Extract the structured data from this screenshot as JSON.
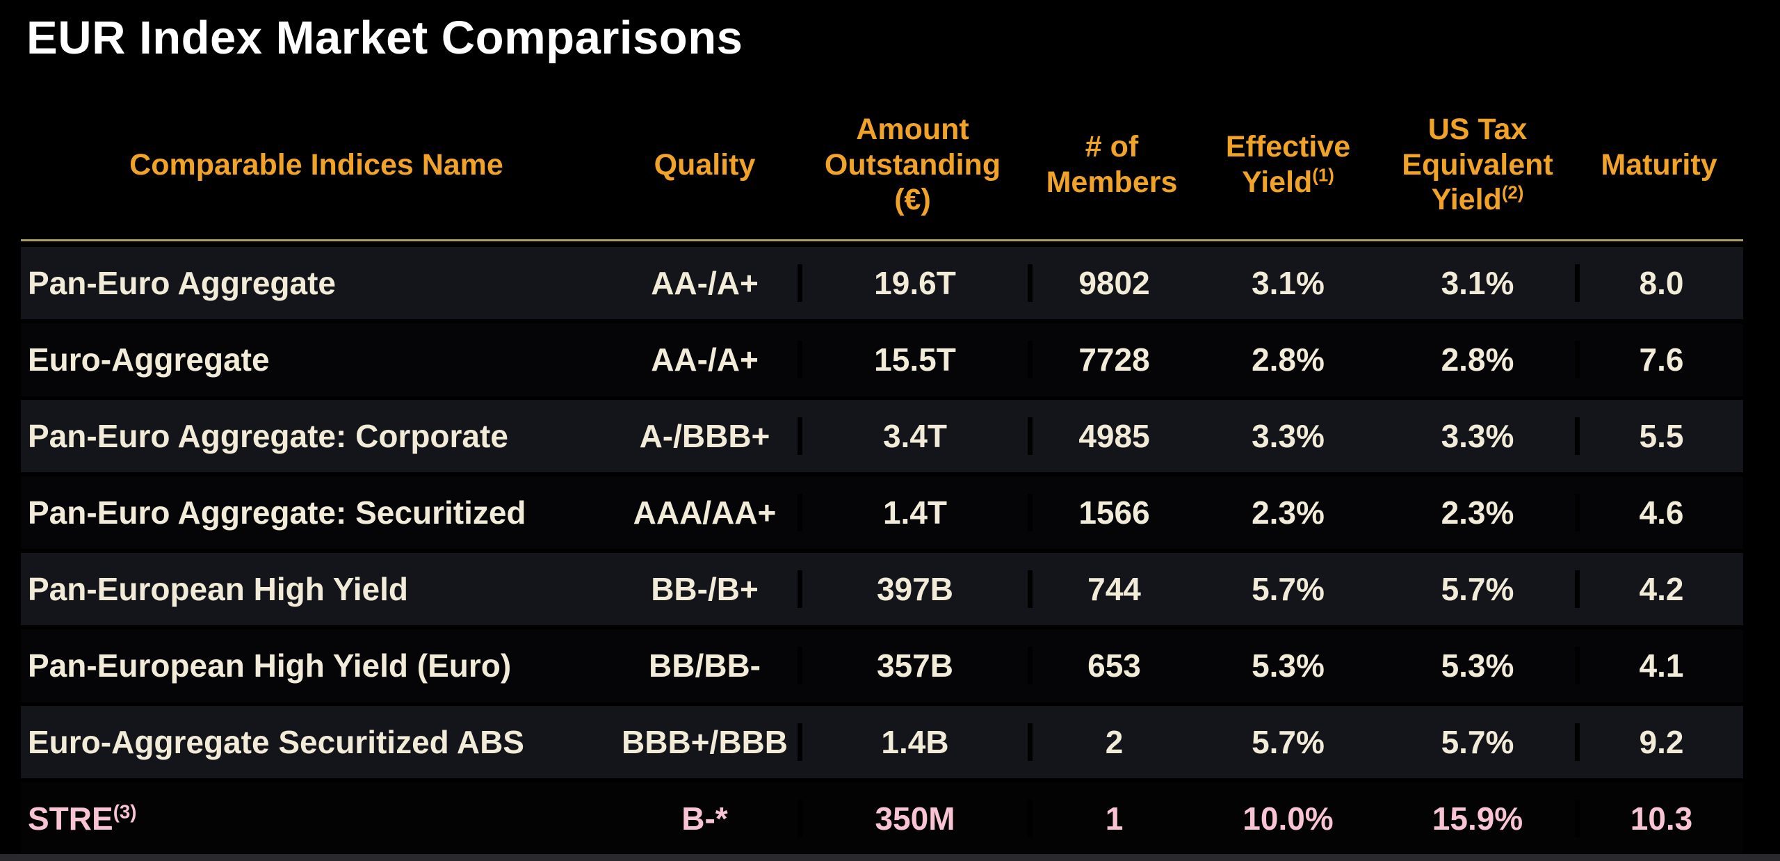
{
  "page": {
    "title": "EUR Index Market Comparisons"
  },
  "colors": {
    "background": "#000000",
    "title_color": "#FFFFFF",
    "header_accent": "#F1A328",
    "divider": "#AC9E63",
    "row_text": "#F2EBD7",
    "row_stripe": "#14151B",
    "highlight_pink": "#F8C3D3",
    "bottom_bar": "#2A2A2E"
  },
  "table": {
    "columns": [
      {
        "key": "name",
        "label": "Comparable Indices Name",
        "sup": ""
      },
      {
        "key": "quality",
        "label": "Quality",
        "sup": ""
      },
      {
        "key": "amount-outstanding",
        "label": "Amount Outstanding (€)",
        "sup": ""
      },
      {
        "key": "members",
        "label": "# of Members",
        "sup": ""
      },
      {
        "key": "effective-yield",
        "label": "Effective Yield",
        "sup": "(1)"
      },
      {
        "key": "us-tax-equivalent-yield",
        "label": "US Tax Equivalent Yield",
        "sup": "(2)"
      },
      {
        "key": "maturity",
        "label": "Maturity",
        "sup": ""
      }
    ],
    "rows": [
      {
        "name": "Pan-Euro Aggregate",
        "name_sup": "",
        "quality": "AA-/A+",
        "amount_outstanding": "19.6T",
        "members": "9802",
        "effective_yield": "3.1%",
        "us_tax_equivalent_yield": "3.1%",
        "maturity": "8.0",
        "highlight": ""
      },
      {
        "name": "Euro-Aggregate",
        "name_sup": "",
        "quality": "AA-/A+",
        "amount_outstanding": "15.5T",
        "members": "7728",
        "effective_yield": "2.8%",
        "us_tax_equivalent_yield": "2.8%",
        "maturity": "7.6",
        "highlight": ""
      },
      {
        "name": "Pan-Euro Aggregate: Corporate",
        "name_sup": "",
        "quality": "A-/BBB+",
        "amount_outstanding": "3.4T",
        "members": "4985",
        "effective_yield": "3.3%",
        "us_tax_equivalent_yield": "3.3%",
        "maturity": "5.5",
        "highlight": ""
      },
      {
        "name": "Pan-Euro Aggregate: Securitized",
        "name_sup": "",
        "quality": "AAA/AA+",
        "amount_outstanding": "1.4T",
        "members": "1566",
        "effective_yield": "2.3%",
        "us_tax_equivalent_yield": "2.3%",
        "maturity": "4.6",
        "highlight": ""
      },
      {
        "name": "Pan-European High Yield",
        "name_sup": "",
        "quality": "BB-/B+",
        "amount_outstanding": "397B",
        "members": "744",
        "effective_yield": "5.7%",
        "us_tax_equivalent_yield": "5.7%",
        "maturity": "4.2",
        "highlight": ""
      },
      {
        "name": "Pan-European High Yield (Euro)",
        "name_sup": "",
        "quality": "BB/BB-",
        "amount_outstanding": "357B",
        "members": "653",
        "effective_yield": "5.3%",
        "us_tax_equivalent_yield": "5.3%",
        "maturity": "4.1",
        "highlight": ""
      },
      {
        "name": "Euro-Aggregate Securitized ABS",
        "name_sup": "",
        "quality": "BBB+/BBB",
        "amount_outstanding": "1.4B",
        "members": "2",
        "effective_yield": "5.7%",
        "us_tax_equivalent_yield": "5.7%",
        "maturity": "9.2",
        "highlight": ""
      },
      {
        "name": "STRE",
        "name_sup": "(3)",
        "quality": "B-*",
        "amount_outstanding": "350M",
        "members": "1",
        "effective_yield": "10.0%",
        "us_tax_equivalent_yield": "15.9%",
        "maturity": "10.3",
        "highlight": "pink"
      }
    ]
  }
}
